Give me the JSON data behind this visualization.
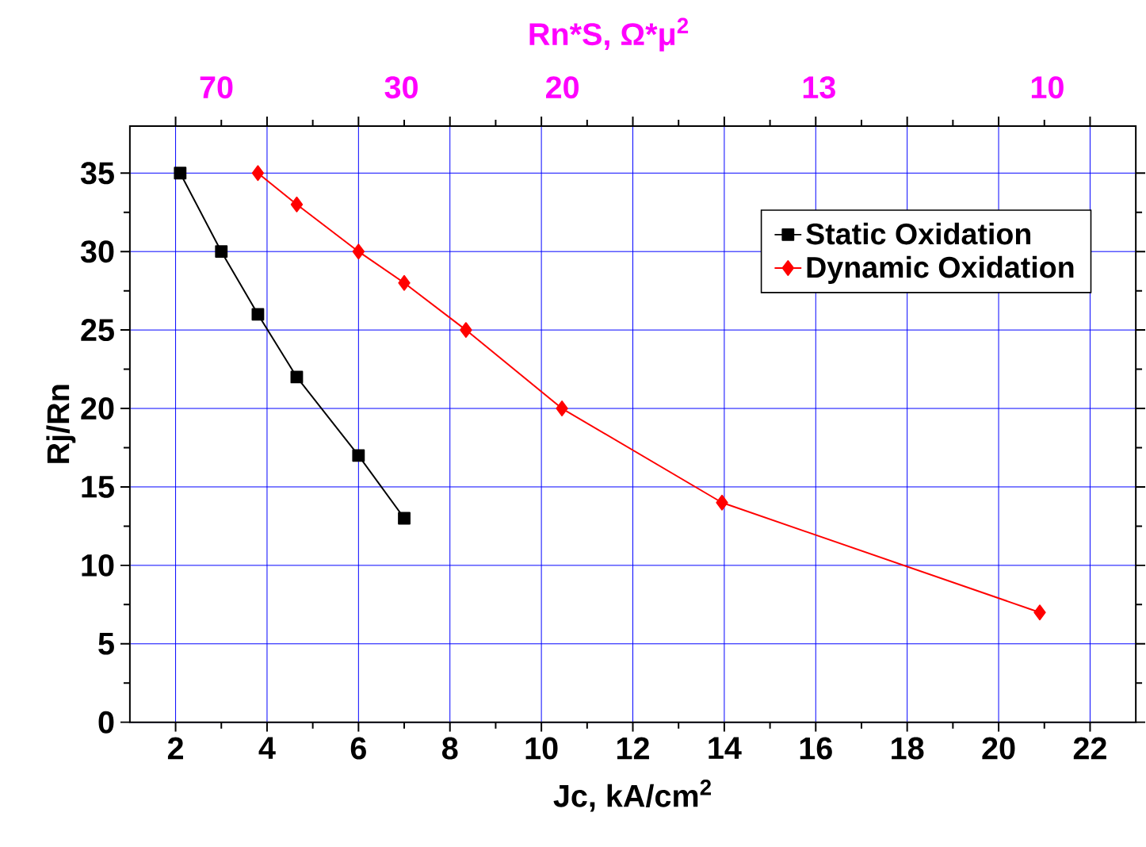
{
  "chart_data": {
    "type": "line",
    "xlabel": "Jc, kA/cm$^{2}$",
    "ylabel": "Rj/Rn",
    "x2label": "Rn*S, Ω*μ$^{2}$",
    "xlim": [
      1,
      23
    ],
    "xticks": [
      2,
      4,
      6,
      8,
      10,
      12,
      14,
      16,
      18,
      20,
      22
    ],
    "ylim": [
      0,
      38
    ],
    "yticks": [
      0,
      5,
      10,
      15,
      20,
      25,
      30,
      35
    ],
    "annotations": [
      "70",
      "30",
      "20",
      "13",
      "10"
    ],
    "grid": true,
    "legend": "top right",
    "series": [
      {
        "name": "Static Oxidation",
        "color": "#000000",
        "marker": "square",
        "line_style": "solid",
        "x": [
          2.1,
          3.0,
          3.8,
          4.65,
          6.0,
          7.0
        ],
        "values": [
          35,
          30,
          26,
          22,
          17,
          13
        ]
      },
      {
        "name": "Dynamic Oxidation",
        "color": "#ff0000",
        "marker": "diamond",
        "line_style": "solid",
        "x": [
          3.8,
          4.65,
          6.0,
          7.0,
          8.35,
          10.45,
          13.95,
          20.9
        ],
        "values": [
          35,
          33,
          30,
          28,
          25,
          20,
          14,
          7
        ]
      }
    ]
  }
}
